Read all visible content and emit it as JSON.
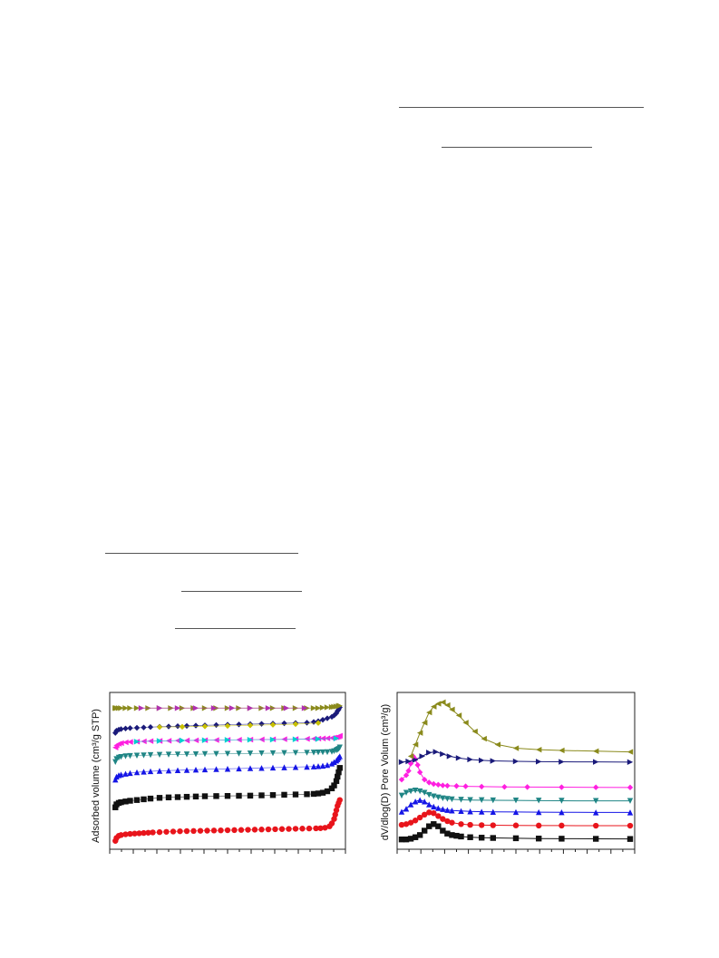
{
  "chart_data": [
    {
      "type": "scatter",
      "title": "",
      "xlabel": "",
      "ylabel": "Adsorbed volume (cm³/g STP)",
      "xlim": [
        0,
        1
      ],
      "ylim": [
        0,
        1
      ],
      "grid": false,
      "series": [
        {
          "color": "#e8141b",
          "marker": "circle",
          "x": [
            0.005,
            0.01,
            0.02,
            0.03,
            0.05,
            0.07,
            0.09,
            0.11,
            0.13,
            0.15,
            0.17,
            0.2,
            0.23,
            0.26,
            0.29,
            0.32,
            0.35,
            0.38,
            0.41,
            0.44,
            0.47,
            0.5,
            0.53,
            0.56,
            0.59,
            0.62,
            0.65,
            0.68,
            0.71,
            0.74,
            0.77,
            0.8,
            0.83,
            0.86,
            0.89,
            0.91,
            0.93,
            0.95,
            0.96,
            0.97,
            0.975,
            0.98,
            0.985,
            0.99,
            0.995
          ],
          "y": [
            0.02,
            0.04,
            0.055,
            0.06,
            0.065,
            0.068,
            0.07,
            0.072,
            0.074,
            0.076,
            0.078,
            0.08,
            0.082,
            0.084,
            0.086,
            0.087,
            0.088,
            0.089,
            0.09,
            0.091,
            0.092,
            0.093,
            0.094,
            0.095,
            0.096,
            0.097,
            0.098,
            0.099,
            0.1,
            0.101,
            0.102,
            0.103,
            0.104,
            0.105,
            0.106,
            0.107,
            0.11,
            0.12,
            0.14,
            0.17,
            0.2,
            0.23,
            0.26,
            0.28,
            0.3
          ]
        },
        {
          "color": "#111111",
          "marker": "square",
          "x": [
            0.005,
            0.01,
            0.02,
            0.03,
            0.05,
            0.07,
            0.1,
            0.13,
            0.16,
            0.2,
            0.24,
            0.28,
            0.32,
            0.36,
            0.4,
            0.45,
            0.5,
            0.55,
            0.6,
            0.65,
            0.7,
            0.75,
            0.8,
            0.85,
            0.88,
            0.9,
            0.92,
            0.94,
            0.96,
            0.97,
            0.98,
            0.985,
            0.99,
            0.995
          ],
          "y": [
            0.25,
            0.27,
            0.28,
            0.285,
            0.29,
            0.295,
            0.3,
            0.305,
            0.31,
            0.315,
            0.318,
            0.32,
            0.322,
            0.324,
            0.326,
            0.327,
            0.328,
            0.329,
            0.33,
            0.332,
            0.334,
            0.336,
            0.338,
            0.34,
            0.342,
            0.345,
            0.35,
            0.36,
            0.38,
            0.4,
            0.43,
            0.46,
            0.49,
            0.52
          ]
        },
        {
          "color": "#1515e6",
          "marker": "triangle-up",
          "x": [
            0.005,
            0.01,
            0.02,
            0.03,
            0.05,
            0.07,
            0.1,
            0.13,
            0.16,
            0.2,
            0.24,
            0.28,
            0.32,
            0.36,
            0.4,
            0.45,
            0.5,
            0.55,
            0.6,
            0.65,
            0.7,
            0.75,
            0.8,
            0.85,
            0.88,
            0.9,
            0.92,
            0.94,
            0.96,
            0.97,
            0.98,
            0.985,
            0.99,
            0.995
          ],
          "y": [
            0.44,
            0.46,
            0.47,
            0.475,
            0.48,
            0.485,
            0.49,
            0.494,
            0.497,
            0.5,
            0.502,
            0.504,
            0.506,
            0.508,
            0.51,
            0.512,
            0.514,
            0.516,
            0.518,
            0.52,
            0.522,
            0.524,
            0.526,
            0.528,
            0.53,
            0.532,
            0.535,
            0.54,
            0.55,
            0.56,
            0.57,
            0.58,
            0.59,
            0.6
          ]
        },
        {
          "color": "#1f8585",
          "marker": "triangle-down",
          "x": [
            0.005,
            0.01,
            0.02,
            0.03,
            0.05,
            0.07,
            0.1,
            0.13,
            0.16,
            0.2,
            0.24,
            0.28,
            0.32,
            0.36,
            0.4,
            0.45,
            0.5,
            0.55,
            0.6,
            0.65,
            0.7,
            0.75,
            0.8,
            0.85,
            0.88,
            0.9,
            0.92,
            0.94,
            0.96,
            0.97,
            0.98,
            0.985,
            0.99,
            0.995
          ],
          "y": [
            0.56,
            0.58,
            0.59,
            0.595,
            0.6,
            0.602,
            0.604,
            0.606,
            0.608,
            0.61,
            0.611,
            0.612,
            0.613,
            0.614,
            0.615,
            0.616,
            0.617,
            0.618,
            0.619,
            0.62,
            0.621,
            0.622,
            0.623,
            0.624,
            0.625,
            0.626,
            0.627,
            0.628,
            0.63,
            0.635,
            0.64,
            0.645,
            0.65,
            0.66
          ]
        },
        {
          "color": "#ff1fe0",
          "marker": "triangle-left",
          "x": [
            0.005,
            0.01,
            0.02,
            0.03,
            0.05,
            0.07,
            0.1,
            0.13,
            0.16,
            0.2,
            0.24,
            0.28,
            0.32,
            0.36,
            0.4,
            0.45,
            0.5,
            0.55,
            0.6,
            0.65,
            0.7,
            0.75,
            0.8,
            0.85,
            0.88,
            0.9,
            0.92,
            0.94,
            0.96,
            0.97,
            0.98,
            0.985,
            0.99,
            0.995
          ],
          "y": [
            0.66,
            0.675,
            0.685,
            0.69,
            0.695,
            0.698,
            0.7,
            0.702,
            0.704,
            0.705,
            0.706,
            0.707,
            0.708,
            0.709,
            0.71,
            0.711,
            0.712,
            0.713,
            0.714,
            0.715,
            0.716,
            0.717,
            0.718,
            0.719,
            0.72,
            0.721,
            0.722,
            0.723,
            0.725,
            0.728,
            0.73,
            0.733,
            0.736,
            0.74
          ]
        },
        {
          "color": "#00cfcf",
          "marker": "triangle-right",
          "x": [
            0.1,
            0.2,
            0.3,
            0.4,
            0.5,
            0.6,
            0.7,
            0.8,
            0.9,
            0.98
          ],
          "y": [
            0.7,
            0.705,
            0.708,
            0.71,
            0.712,
            0.713,
            0.714,
            0.716,
            0.718,
            0.722
          ]
        },
        {
          "color": "#1a1a7a",
          "marker": "diamond",
          "x": [
            0.005,
            0.01,
            0.02,
            0.03,
            0.05,
            0.07,
            0.1,
            0.13,
            0.16,
            0.2,
            0.24,
            0.28,
            0.32,
            0.36,
            0.4,
            0.45,
            0.5,
            0.55,
            0.6,
            0.65,
            0.7,
            0.75,
            0.8,
            0.85,
            0.88,
            0.9,
            0.92,
            0.94,
            0.96,
            0.97,
            0.98,
            0.985,
            0.99,
            0.995
          ],
          "y": [
            0.76,
            0.775,
            0.782,
            0.786,
            0.79,
            0.793,
            0.795,
            0.797,
            0.8,
            0.802,
            0.804,
            0.806,
            0.808,
            0.81,
            0.812,
            0.814,
            0.816,
            0.818,
            0.82,
            0.822,
            0.824,
            0.826,
            0.828,
            0.83,
            0.835,
            0.84,
            0.85,
            0.86,
            0.87,
            0.88,
            0.895,
            0.91,
            0.92,
            0.935
          ]
        },
        {
          "color": "#c8c000",
          "marker": "diamond",
          "x": [
            0.2,
            0.3,
            0.4,
            0.5,
            0.6,
            0.7,
            0.8,
            0.9
          ],
          "y": [
            0.8,
            0.802,
            0.805,
            0.808,
            0.812,
            0.816,
            0.82,
            0.828
          ]
        },
        {
          "color": "#8a8a1c",
          "marker": "triangle-right",
          "x": [
            0.005,
            0.01,
            0.02,
            0.03,
            0.05,
            0.07,
            0.1,
            0.15,
            0.2,
            0.25,
            0.3,
            0.35,
            0.4,
            0.45,
            0.5,
            0.55,
            0.6,
            0.65,
            0.7,
            0.75,
            0.8,
            0.85,
            0.88,
            0.9,
            0.92,
            0.94,
            0.96,
            0.97,
            0.98,
            0.99,
            0.995
          ],
          "y": [
            0.93,
            0.93,
            0.93,
            0.93,
            0.93,
            0.93,
            0.93,
            0.93,
            0.93,
            0.93,
            0.93,
            0.93,
            0.93,
            0.93,
            0.93,
            0.93,
            0.93,
            0.93,
            0.93,
            0.93,
            0.93,
            0.93,
            0.93,
            0.93,
            0.933,
            0.935,
            0.937,
            0.939,
            0.941,
            0.944,
            0.946
          ]
        },
        {
          "color": "#b030b0",
          "marker": "triangle-right",
          "x": [
            0.12,
            0.2,
            0.28,
            0.36,
            0.44,
            0.52,
            0.6,
            0.68,
            0.76,
            0.84
          ],
          "y": [
            0.93,
            0.93,
            0.93,
            0.93,
            0.93,
            0.93,
            0.93,
            0.93,
            0.93,
            0.93
          ]
        }
      ]
    },
    {
      "type": "line",
      "title": "",
      "xlabel": "",
      "ylabel": "dV/dlog(D) Pore Volum (cm³/g)",
      "xlim": [
        0,
        1
      ],
      "ylim": [
        0,
        1
      ],
      "grid": false,
      "series": [
        {
          "color": "#111111",
          "marker": "square",
          "x": [
            0.0,
            0.02,
            0.04,
            0.06,
            0.08,
            0.1,
            0.12,
            0.14,
            0.16,
            0.18,
            0.2,
            0.22,
            0.24,
            0.26,
            0.3,
            0.35,
            0.4,
            0.5,
            0.6,
            0.7,
            0.85,
            1.0
          ],
          "y": [
            0.03,
            0.03,
            0.035,
            0.045,
            0.06,
            0.09,
            0.12,
            0.135,
            0.12,
            0.09,
            0.07,
            0.06,
            0.055,
            0.05,
            0.045,
            0.042,
            0.04,
            0.038,
            0.036,
            0.035,
            0.034,
            0.033
          ]
        },
        {
          "color": "#e8141b",
          "marker": "circle",
          "x": [
            0.0,
            0.02,
            0.04,
            0.06,
            0.08,
            0.1,
            0.12,
            0.14,
            0.16,
            0.18,
            0.2,
            0.22,
            0.26,
            0.3,
            0.35,
            0.4,
            0.5,
            0.6,
            0.7,
            0.85,
            1.0
          ],
          "y": [
            0.13,
            0.135,
            0.145,
            0.16,
            0.18,
            0.2,
            0.215,
            0.21,
            0.19,
            0.17,
            0.155,
            0.145,
            0.135,
            0.13,
            0.128,
            0.127,
            0.126,
            0.125,
            0.125,
            0.124,
            0.124
          ]
        },
        {
          "color": "#1515e6",
          "marker": "triangle-up",
          "x": [
            0.0,
            0.02,
            0.04,
            0.06,
            0.08,
            0.1,
            0.12,
            0.14,
            0.16,
            0.18,
            0.2,
            0.22,
            0.26,
            0.3,
            0.35,
            0.4,
            0.5,
            0.6,
            0.7,
            0.85,
            1.0
          ],
          "y": [
            0.22,
            0.24,
            0.27,
            0.29,
            0.3,
            0.29,
            0.27,
            0.255,
            0.245,
            0.238,
            0.232,
            0.228,
            0.225,
            0.222,
            0.22,
            0.219,
            0.218,
            0.217,
            0.216,
            0.215,
            0.215
          ]
        },
        {
          "color": "#1f8585",
          "marker": "triangle-down",
          "x": [
            0.0,
            0.02,
            0.04,
            0.06,
            0.08,
            0.1,
            0.12,
            0.14,
            0.16,
            0.18,
            0.2,
            0.22,
            0.26,
            0.3,
            0.35,
            0.4,
            0.5,
            0.6,
            0.7,
            0.85,
            1.0
          ],
          "y": [
            0.33,
            0.35,
            0.36,
            0.365,
            0.36,
            0.35,
            0.335,
            0.325,
            0.318,
            0.312,
            0.308,
            0.305,
            0.302,
            0.3,
            0.299,
            0.298,
            0.297,
            0.296,
            0.295,
            0.294,
            0.294
          ]
        },
        {
          "color": "#ff1fe0",
          "marker": "diamond",
          "x": [
            0.0,
            0.02,
            0.03,
            0.04,
            0.05,
            0.06,
            0.07,
            0.08,
            0.1,
            0.12,
            0.14,
            0.16,
            0.18,
            0.2,
            0.24,
            0.28,
            0.35,
            0.45,
            0.55,
            0.7,
            0.85,
            1.0
          ],
          "y": [
            0.44,
            0.47,
            0.5,
            0.55,
            0.6,
            0.58,
            0.54,
            0.49,
            0.44,
            0.42,
            0.41,
            0.405,
            0.4,
            0.398,
            0.396,
            0.394,
            0.392,
            0.39,
            0.389,
            0.388,
            0.387,
            0.386
          ]
        },
        {
          "color": "#1a1a7a",
          "marker": "triangle-right",
          "x": [
            0.0,
            0.03,
            0.06,
            0.09,
            0.12,
            0.15,
            0.18,
            0.21,
            0.25,
            0.3,
            0.35,
            0.4,
            0.5,
            0.6,
            0.7,
            0.85,
            1.0
          ],
          "y": [
            0.56,
            0.565,
            0.575,
            0.6,
            0.625,
            0.63,
            0.615,
            0.6,
            0.588,
            0.578,
            0.572,
            0.568,
            0.565,
            0.563,
            0.562,
            0.561,
            0.56
          ]
        },
        {
          "color": "#8a8a1c",
          "marker": "triangle-left",
          "x": [
            0.04,
            0.06,
            0.08,
            0.1,
            0.12,
            0.14,
            0.16,
            0.18,
            0.2,
            0.22,
            0.25,
            0.28,
            0.32,
            0.36,
            0.42,
            0.5,
            0.6,
            0.7,
            0.85,
            1.0
          ],
          "y": [
            0.6,
            0.68,
            0.76,
            0.83,
            0.9,
            0.94,
            0.96,
            0.97,
            0.95,
            0.92,
            0.88,
            0.83,
            0.77,
            0.72,
            0.68,
            0.655,
            0.645,
            0.64,
            0.635,
            0.63
          ]
        }
      ]
    }
  ]
}
